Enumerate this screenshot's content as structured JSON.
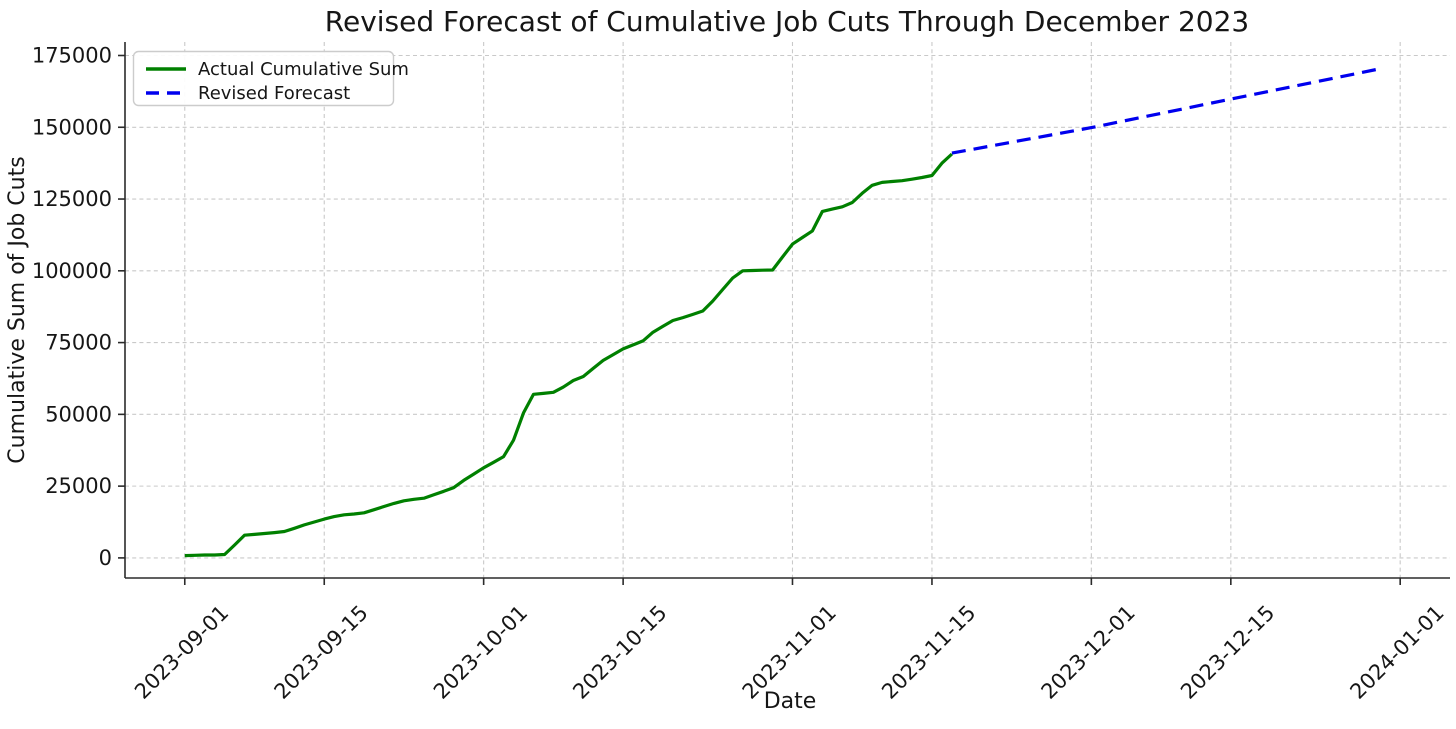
{
  "figure": {
    "title": "Revised Forecast of Cumulative Job Cuts Through December 2023"
  },
  "chart_data": {
    "type": "line",
    "title": "Revised Forecast of Cumulative Job Cuts Through December 2023",
    "xlabel": "Date",
    "ylabel": "Cumulative Sum of Job Cuts",
    "x_tick_labels": [
      "2023-09-01",
      "2023-09-15",
      "2023-10-01",
      "2023-10-15",
      "2023-11-01",
      "2023-11-15",
      "2023-12-01",
      "2023-12-15",
      "2024-01-01"
    ],
    "y_ticks": [
      0,
      25000,
      50000,
      75000,
      100000,
      125000,
      150000,
      175000
    ],
    "xlim": [
      "2023-08-26",
      "2024-01-06"
    ],
    "ylim": [
      -7000,
      179700
    ],
    "grid": true,
    "grid_style": "dashed",
    "background": "#ffffff",
    "legend": {
      "position": "upper-left"
    },
    "series": [
      {
        "name": "Actual Cumulative Sum",
        "color": "#008000",
        "line_style": "solid",
        "line_width": 3.2,
        "points": [
          [
            "2023-09-01",
            800
          ],
          [
            "2023-09-02",
            900
          ],
          [
            "2023-09-03",
            1000
          ],
          [
            "2023-09-04",
            1000
          ],
          [
            "2023-09-05",
            1200
          ],
          [
            "2023-09-06",
            4500
          ],
          [
            "2023-09-07",
            7900
          ],
          [
            "2023-09-08",
            8200
          ],
          [
            "2023-09-09",
            8500
          ],
          [
            "2023-09-10",
            8800
          ],
          [
            "2023-09-11",
            9200
          ],
          [
            "2023-09-12",
            10300
          ],
          [
            "2023-09-13",
            11500
          ],
          [
            "2023-09-14",
            12500
          ],
          [
            "2023-09-15",
            13500
          ],
          [
            "2023-09-16",
            14400
          ],
          [
            "2023-09-17",
            15000
          ],
          [
            "2023-09-18",
            15300
          ],
          [
            "2023-09-19",
            15700
          ],
          [
            "2023-09-20",
            16800
          ],
          [
            "2023-09-21",
            17900
          ],
          [
            "2023-09-22",
            19000
          ],
          [
            "2023-09-23",
            19900
          ],
          [
            "2023-09-24",
            20400
          ],
          [
            "2023-09-25",
            20800
          ],
          [
            "2023-09-26",
            22000
          ],
          [
            "2023-09-27",
            23200
          ],
          [
            "2023-09-28",
            24500
          ],
          [
            "2023-09-29",
            27000
          ],
          [
            "2023-09-30",
            29200
          ],
          [
            "2023-10-01",
            31400
          ],
          [
            "2023-10-02",
            33300
          ],
          [
            "2023-10-03",
            35300
          ],
          [
            "2023-10-04",
            41000
          ],
          [
            "2023-10-05",
            50500
          ],
          [
            "2023-10-06",
            57000
          ],
          [
            "2023-10-07",
            57300
          ],
          [
            "2023-10-08",
            57700
          ],
          [
            "2023-10-09",
            59500
          ],
          [
            "2023-10-10",
            61800
          ],
          [
            "2023-10-11",
            63200
          ],
          [
            "2023-10-12",
            66000
          ],
          [
            "2023-10-13",
            68800
          ],
          [
            "2023-10-14",
            70800
          ],
          [
            "2023-10-15",
            72800
          ],
          [
            "2023-10-16",
            74200
          ],
          [
            "2023-10-17",
            75600
          ],
          [
            "2023-10-18",
            78600
          ],
          [
            "2023-10-19",
            80700
          ],
          [
            "2023-10-20",
            82700
          ],
          [
            "2023-10-21",
            83700
          ],
          [
            "2023-10-22",
            84800
          ],
          [
            "2023-10-23",
            86000
          ],
          [
            "2023-10-24",
            89500
          ],
          [
            "2023-10-25",
            93500
          ],
          [
            "2023-10-26",
            97500
          ],
          [
            "2023-10-27",
            100000
          ],
          [
            "2023-10-28",
            100100
          ],
          [
            "2023-10-29",
            100200
          ],
          [
            "2023-10-30",
            100300
          ],
          [
            "2023-10-31",
            104800
          ],
          [
            "2023-11-01",
            109300
          ],
          [
            "2023-11-02",
            111600
          ],
          [
            "2023-11-03",
            113900
          ],
          [
            "2023-11-04",
            120700
          ],
          [
            "2023-11-05",
            121500
          ],
          [
            "2023-11-06",
            122300
          ],
          [
            "2023-11-07",
            123800
          ],
          [
            "2023-11-08",
            127000
          ],
          [
            "2023-11-09",
            129800
          ],
          [
            "2023-11-10",
            130800
          ],
          [
            "2023-11-11",
            131100
          ],
          [
            "2023-11-12",
            131400
          ],
          [
            "2023-11-13",
            131900
          ],
          [
            "2023-11-14",
            132500
          ],
          [
            "2023-11-15",
            133200
          ],
          [
            "2023-11-16",
            137500
          ],
          [
            "2023-11-17",
            140700
          ]
        ]
      },
      {
        "name": "Revised Forecast",
        "color": "#0000ee",
        "line_style": "dashed",
        "dash_pattern": [
          14,
          8
        ],
        "line_width": 3.2,
        "points": [
          [
            "2023-11-17",
            141000
          ],
          [
            "2023-12-01",
            149900
          ],
          [
            "2023-12-15",
            159800
          ],
          [
            "2023-12-30",
            170400
          ]
        ]
      }
    ]
  }
}
